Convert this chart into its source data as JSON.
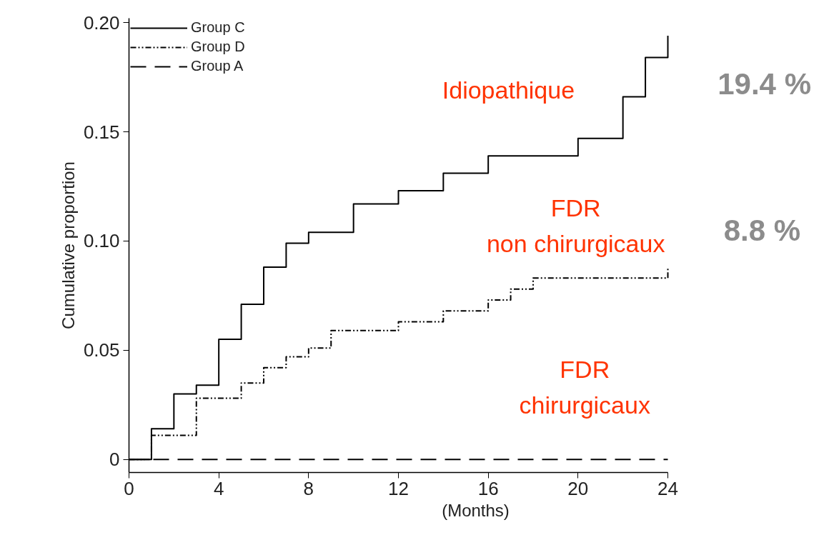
{
  "chart_data": {
    "type": "step",
    "xlabel": "(Months)",
    "ylabel": "Cumulative proportion",
    "xlim": [
      0,
      24
    ],
    "ylim": [
      -0.006,
      0.202
    ],
    "xticks": [
      0,
      4,
      8,
      12,
      16,
      20,
      24
    ],
    "yticks": [
      0,
      0.05,
      {
        "value": 0.1,
        "label": "0.10"
      },
      0.15,
      {
        "value": 0.2,
        "label": "0.20"
      }
    ],
    "grid": false,
    "legend": "top left",
    "marker": "none",
    "series": [
      {
        "name": "Group C",
        "color": "#000000",
        "line_style": "solid",
        "x": [
          0,
          1,
          2,
          3,
          4,
          5,
          6,
          7,
          8,
          10,
          12,
          14,
          16,
          20,
          22,
          23,
          24
        ],
        "values": [
          0,
          0.014,
          0.03,
          0.034,
          0.055,
          0.071,
          0.088,
          0.099,
          0.104,
          0.117,
          0.123,
          0.131,
          0.139,
          0.147,
          0.166,
          0.184,
          0.194
        ]
      },
      {
        "name": "Group D",
        "color": "#000000",
        "line_style": "dashdot",
        "x": [
          0,
          1,
          3,
          5,
          6,
          7,
          8,
          9,
          12,
          14,
          16,
          17,
          18,
          24
        ],
        "values": [
          0,
          0.011,
          0.028,
          0.035,
          0.042,
          0.047,
          0.051,
          0.059,
          0.063,
          0.068,
          0.073,
          0.078,
          0.083,
          0.088
        ]
      },
      {
        "name": "Group A",
        "color": "#000000",
        "line_style": "dashed",
        "x": [
          0,
          24
        ],
        "values": [
          0,
          0
        ]
      }
    ],
    "annotations": [
      "Idiopathique",
      "FDR\nnon chirurgicaux",
      "FDR\nchirurgicaux",
      "19.4 %",
      "8.8 %"
    ]
  }
}
